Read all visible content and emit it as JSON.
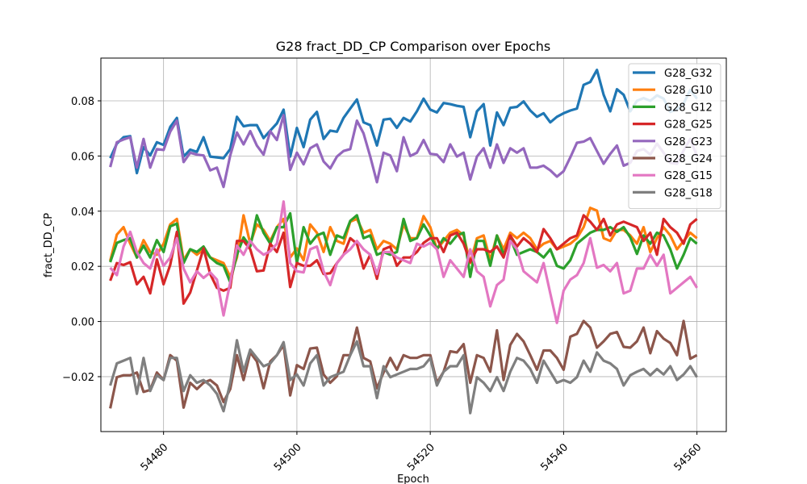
{
  "chart_data": {
    "type": "line",
    "title": "G28 fract_DD_CP Comparison over Epochs",
    "xlabel": "Epoch",
    "ylabel": "fract_DD_CP",
    "xlim": [
      54470.6,
      54564.4
    ],
    "ylim": [
      -0.0399,
      0.0955
    ],
    "xticks": [
      54480,
      54500,
      54520,
      54540,
      54560
    ],
    "xtick_labels": [
      "54480",
      "54500",
      "54520",
      "54540",
      "54560"
    ],
    "yticks": [
      -0.02,
      0.0,
      0.02,
      0.04,
      0.06,
      0.08
    ],
    "ytick_labels": [
      "−0.02",
      "0.00",
      "0.02",
      "0.04",
      "0.06",
      "0.08"
    ],
    "grid": true,
    "legend_position": "top-right",
    "x_start": 54472,
    "x_step": 1,
    "series": [
      {
        "name": "G28_G32",
        "color": "#1f77b4",
        "values": [
          0.0592,
          0.0645,
          0.0668,
          0.0672,
          0.0538,
          0.0632,
          0.0602,
          0.065,
          0.064,
          0.0705,
          0.0738,
          0.0598,
          0.0623,
          0.0615,
          0.0668,
          0.0598,
          0.0595,
          0.0592,
          0.0625,
          0.0742,
          0.0708,
          0.0712,
          0.0712,
          0.0665,
          0.0692,
          0.0718,
          0.0768,
          0.0598,
          0.0702,
          0.0632,
          0.0732,
          0.076,
          0.0662,
          0.0692,
          0.0688,
          0.0738,
          0.0772,
          0.0805,
          0.0722,
          0.0712,
          0.0638,
          0.0732,
          0.0735,
          0.0702,
          0.0738,
          0.0725,
          0.0762,
          0.0808,
          0.0768,
          0.0758,
          0.0792,
          0.0788,
          0.0782,
          0.0778,
          0.0668,
          0.0762,
          0.0788,
          0.0638,
          0.0758,
          0.0712,
          0.0775,
          0.0778,
          0.0798,
          0.0765,
          0.0742,
          0.0755,
          0.0722,
          0.0742,
          0.0755,
          0.0765,
          0.0772,
          0.0858,
          0.0868,
          0.0912,
          0.0822,
          0.0762,
          0.0842,
          0.0822,
          0.0762,
          0.08,
          0.081,
          0.08,
          0.082,
          0.0808,
          0.076,
          0.077,
          0.079,
          0.084,
          0.0808
        ]
      },
      {
        "name": "G28_G10",
        "color": "#ff7f0e",
        "values": [
          0.022,
          0.0315,
          0.0342,
          0.0282,
          0.0232,
          0.0295,
          0.0252,
          0.0242,
          0.0282,
          0.0352,
          0.0372,
          0.0222,
          0.0262,
          0.0242,
          0.0262,
          0.0232,
          0.0222,
          0.0212,
          0.0162,
          0.0232,
          0.0385,
          0.0282,
          0.0352,
          0.0332,
          0.0292,
          0.0342,
          0.0372,
          0.0232,
          0.0265,
          0.0222,
          0.0352,
          0.0322,
          0.0252,
          0.0342,
          0.0292,
          0.0282,
          0.0362,
          0.0372,
          0.0322,
          0.0332,
          0.0262,
          0.0292,
          0.0282,
          0.0262,
          0.0352,
          0.0302,
          0.0302,
          0.0382,
          0.0342,
          0.0262,
          0.0292,
          0.0322,
          0.0332,
          0.0312,
          0.0212,
          0.0302,
          0.0312,
          0.0222,
          0.0312,
          0.0262,
          0.0322,
          0.0302,
          0.0322,
          0.0302,
          0.0262,
          0.0282,
          0.0292,
          0.0262,
          0.0272,
          0.0282,
          0.0302,
          0.0342,
          0.0412,
          0.0402,
          0.0302,
          0.0292,
          0.0332,
          0.0332,
          0.0312,
          0.0282,
          0.0342,
          0.0252,
          0.0302,
          0.0342,
          0.0312,
          0.0262,
          0.0292,
          0.0322,
          0.0302
        ]
      },
      {
        "name": "G28_G12",
        "color": "#2ca02c",
        "values": [
          0.0215,
          0.0285,
          0.0295,
          0.0302,
          0.0232,
          0.0275,
          0.0232,
          0.0295,
          0.0252,
          0.0345,
          0.0355,
          0.0212,
          0.0262,
          0.0252,
          0.0272,
          0.0232,
          0.0212,
          0.0202,
          0.0142,
          0.0242,
          0.0305,
          0.0272,
          0.0385,
          0.0322,
          0.0282,
          0.0342,
          0.0342,
          0.0392,
          0.0212,
          0.0342,
          0.0282,
          0.0312,
          0.0322,
          0.0242,
          0.0312,
          0.0302,
          0.0365,
          0.0385,
          0.0302,
          0.0312,
          0.0242,
          0.0252,
          0.0242,
          0.0252,
          0.0372,
          0.0292,
          0.0302,
          0.0352,
          0.0312,
          0.0262,
          0.0302,
          0.0282,
          0.0312,
          0.0322,
          0.0162,
          0.0292,
          0.0292,
          0.0202,
          0.0312,
          0.0242,
          0.0302,
          0.0242,
          0.0252,
          0.0262,
          0.0252,
          0.0232,
          0.0262,
          0.0202,
          0.0192,
          0.0222,
          0.0282,
          0.0302,
          0.0322,
          0.0332,
          0.0332,
          0.0342,
          0.0325,
          0.0342,
          0.0305,
          0.0245,
          0.0312,
          0.0282,
          0.0322,
          0.0312,
          0.0262,
          0.0192,
          0.0242,
          0.0302,
          0.0282
        ]
      },
      {
        "name": "G28_G25",
        "color": "#d62728",
        "values": [
          0.0148,
          0.0212,
          0.0205,
          0.0215,
          0.0135,
          0.0162,
          0.0102,
          0.0225,
          0.0135,
          0.0205,
          0.0325,
          0.0065,
          0.0105,
          0.0185,
          0.0265,
          0.0172,
          0.0122,
          0.0112,
          0.0122,
          0.0292,
          0.0292,
          0.0262,
          0.0182,
          0.0185,
          0.0282,
          0.0252,
          0.0322,
          0.0125,
          0.0212,
          0.0202,
          0.0202,
          0.0222,
          0.0172,
          0.0175,
          0.0212,
          0.0242,
          0.0302,
          0.0282,
          0.0192,
          0.0242,
          0.0155,
          0.0262,
          0.0272,
          0.0202,
          0.0232,
          0.0232,
          0.0252,
          0.0285,
          0.0302,
          0.0302,
          0.0252,
          0.0312,
          0.0322,
          0.0282,
          0.0215,
          0.0262,
          0.0262,
          0.0252,
          0.0272,
          0.0232,
          0.0312,
          0.0272,
          0.0302,
          0.0282,
          0.0252,
          0.0335,
          0.0302,
          0.0262,
          0.0282,
          0.0302,
          0.0312,
          0.0385,
          0.0362,
          0.0332,
          0.0372,
          0.0312,
          0.0352,
          0.0362,
          0.0352,
          0.0342,
          0.0292,
          0.0322,
          0.0242,
          0.0372,
          0.0342,
          0.0322,
          0.0282,
          0.0352,
          0.0372
        ]
      },
      {
        "name": "G28_G23",
        "color": "#9467bd",
        "values": [
          0.056,
          0.065,
          0.066,
          0.0668,
          0.0558,
          0.0662,
          0.0558,
          0.0625,
          0.0622,
          0.0688,
          0.0728,
          0.0578,
          0.0612,
          0.0605,
          0.0602,
          0.0548,
          0.0558,
          0.0488,
          0.0602,
          0.0685,
          0.0642,
          0.069,
          0.0638,
          0.0605,
          0.069,
          0.0658,
          0.0748,
          0.055,
          0.0612,
          0.057,
          0.0628,
          0.0642,
          0.058,
          0.0555,
          0.0598,
          0.0618,
          0.0625,
          0.0728,
          0.0682,
          0.0598,
          0.0505,
          0.0612,
          0.0602,
          0.0545,
          0.0668,
          0.06,
          0.0612,
          0.0658,
          0.0608,
          0.0605,
          0.0578,
          0.0642,
          0.0598,
          0.0612,
          0.0515,
          0.0598,
          0.0628,
          0.0558,
          0.0642,
          0.0575,
          0.0628,
          0.0612,
          0.0628,
          0.0558,
          0.0558,
          0.0565,
          0.0548,
          0.0525,
          0.0545,
          0.0595,
          0.0648,
          0.0652,
          0.0665,
          0.0618,
          0.0572,
          0.0608,
          0.0638,
          0.0565,
          0.0575,
          0.0618,
          0.0625,
          0.0605,
          0.0645,
          0.0612,
          0.0575,
          0.0572,
          0.062,
          0.0662,
          0.06
        ]
      },
      {
        "name": "G28_G24",
        "color": "#8c564b",
        "values": [
          -0.0315,
          -0.0202,
          -0.0195,
          -0.0195,
          -0.0185,
          -0.0255,
          -0.0248,
          -0.0185,
          -0.0212,
          -0.0122,
          -0.0142,
          -0.0312,
          -0.0222,
          -0.0245,
          -0.0222,
          -0.0212,
          -0.0232,
          -0.0292,
          -0.0245,
          -0.0122,
          -0.0212,
          -0.0112,
          -0.0145,
          -0.0242,
          -0.0145,
          -0.0122,
          -0.0085,
          -0.0268,
          -0.0158,
          -0.0172,
          -0.0098,
          -0.0095,
          -0.0192,
          -0.0222,
          -0.0198,
          -0.0122,
          -0.0122,
          -0.0022,
          -0.0132,
          -0.0145,
          -0.0242,
          -0.0185,
          -0.0132,
          -0.0175,
          -0.0122,
          -0.0132,
          -0.0132,
          -0.0122,
          -0.0122,
          -0.0222,
          -0.0182,
          -0.0108,
          -0.0112,
          -0.0082,
          -0.0222,
          -0.0122,
          -0.0132,
          -0.0182,
          -0.0032,
          -0.0212,
          -0.0085,
          -0.0045,
          -0.0072,
          -0.0122,
          -0.0175,
          -0.0105,
          -0.0105,
          -0.0132,
          -0.0175,
          -0.0055,
          -0.0045,
          0.0002,
          -0.0022,
          -0.0095,
          -0.0072,
          -0.0045,
          -0.0038,
          -0.0092,
          -0.0095,
          -0.0072,
          -0.0022,
          -0.0115,
          -0.0035,
          -0.0062,
          -0.0078,
          -0.0122,
          0.0002,
          -0.0135,
          -0.0122
        ]
      },
      {
        "name": "G28_G15",
        "color": "#e377c2",
        "values": [
          0.0195,
          0.0168,
          0.0272,
          0.0325,
          0.0252,
          0.0212,
          0.0192,
          0.0262,
          0.0202,
          0.0232,
          0.0302,
          0.0192,
          0.0142,
          0.0182,
          0.0158,
          0.0178,
          0.0152,
          0.0022,
          0.0142,
          0.0275,
          0.0242,
          0.0292,
          0.0262,
          0.0242,
          0.0255,
          0.0282,
          0.0435,
          0.0212,
          0.0182,
          0.0178,
          0.0262,
          0.0272,
          0.0182,
          0.0132,
          0.0212,
          0.0242,
          0.0262,
          0.0292,
          0.0262,
          0.0242,
          0.0172,
          0.0252,
          0.0252,
          0.0232,
          0.0222,
          0.0212,
          0.0282,
          0.0272,
          0.0285,
          0.0262,
          0.0162,
          0.0222,
          0.0192,
          0.0162,
          0.0262,
          0.0182,
          0.0162,
          0.0055,
          0.0132,
          0.0152,
          0.0292,
          0.0262,
          0.0182,
          0.0162,
          0.0142,
          0.0212,
          0.0102,
          -0.0005,
          0.0112,
          0.0152,
          0.0168,
          0.0212,
          0.0302,
          0.0195,
          0.0205,
          0.0182,
          0.0212,
          0.0102,
          0.0112,
          0.0192,
          0.0192,
          0.0242,
          0.0202,
          0.0242,
          0.0102,
          0.0122,
          0.0142,
          0.0162,
          0.0122
        ]
      },
      {
        "name": "G28_G18",
        "color": "#7f7f7f",
        "values": [
          -0.0232,
          -0.0152,
          -0.0142,
          -0.0132,
          -0.0262,
          -0.0132,
          -0.0252,
          -0.0195,
          -0.0212,
          -0.0132,
          -0.0132,
          -0.0252,
          -0.0195,
          -0.0222,
          -0.0212,
          -0.0232,
          -0.0262,
          -0.0325,
          -0.0222,
          -0.0068,
          -0.0182,
          -0.0102,
          -0.0132,
          -0.0162,
          -0.0152,
          -0.0122,
          -0.0075,
          -0.0212,
          -0.0192,
          -0.0232,
          -0.0152,
          -0.0122,
          -0.0232,
          -0.0202,
          -0.0192,
          -0.0182,
          -0.0122,
          -0.0072,
          -0.0162,
          -0.0162,
          -0.0278,
          -0.0162,
          -0.0202,
          -0.0192,
          -0.0182,
          -0.0172,
          -0.0172,
          -0.0162,
          -0.0132,
          -0.0232,
          -0.0182,
          -0.0162,
          -0.0162,
          -0.0122,
          -0.0332,
          -0.0202,
          -0.0222,
          -0.0252,
          -0.0202,
          -0.0252,
          -0.0182,
          -0.0132,
          -0.0142,
          -0.0172,
          -0.0222,
          -0.0142,
          -0.0182,
          -0.0222,
          -0.0212,
          -0.0222,
          -0.0202,
          -0.0142,
          -0.0182,
          -0.0112,
          -0.0142,
          -0.0152,
          -0.0172,
          -0.0232,
          -0.0195,
          -0.0182,
          -0.0172,
          -0.0195,
          -0.0172,
          -0.0192,
          -0.0162,
          -0.0212,
          -0.0192,
          -0.0162,
          -0.0202
        ]
      }
    ]
  }
}
